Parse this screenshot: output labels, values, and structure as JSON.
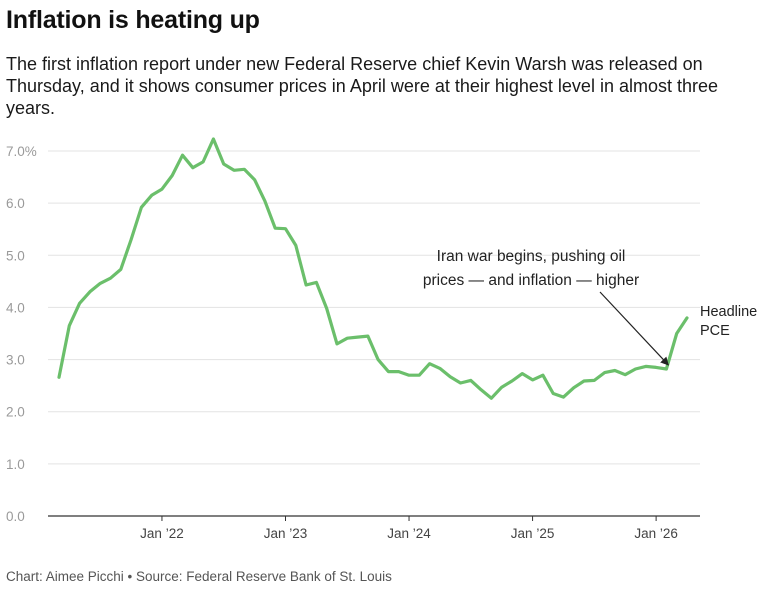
{
  "header": {
    "title": "Inflation is heating up",
    "subtitle": "The first inflation report under new Federal Reserve chief Kevin Warsh was released on Thursday, and it shows consumer prices in April were at their highest level in almost three years."
  },
  "footer": {
    "source": "Chart: Aimee Picchi • Source: Federal Reserve Bank of St. Louis"
  },
  "chart_data": {
    "type": "line",
    "title": "Inflation is heating up",
    "xlabel": "",
    "ylabel": "",
    "ylim": [
      0,
      7.0
    ],
    "yticks": [
      0,
      1,
      2,
      3,
      4,
      5,
      6,
      7
    ],
    "ytick_labels": [
      "0.0",
      "1.0",
      "2.0",
      "3.0",
      "4.0",
      "5.0",
      "6.0",
      "7.0%"
    ],
    "xticks": [
      "2022-01",
      "2023-01",
      "2024-01",
      "2025-01",
      "2026-01"
    ],
    "xtick_labels": [
      "Jan ’22",
      "Jan ’23",
      "Jan ’24",
      "Jan ’25",
      "Jan ’26"
    ],
    "grid": true,
    "line_color": "#6bbf6b",
    "series": [
      {
        "name": "Headline PCE",
        "points": [
          [
            "2021-03",
            2.66
          ],
          [
            "2021-04",
            3.65
          ],
          [
            "2021-05",
            4.08
          ],
          [
            "2021-06",
            4.3
          ],
          [
            "2021-07",
            4.46
          ],
          [
            "2021-08",
            4.56
          ],
          [
            "2021-09",
            4.73
          ],
          [
            "2021-10",
            5.3
          ],
          [
            "2021-11",
            5.92
          ],
          [
            "2021-12",
            6.15
          ],
          [
            "2022-01",
            6.27
          ],
          [
            "2022-02",
            6.53
          ],
          [
            "2022-03",
            6.92
          ],
          [
            "2022-04",
            6.68
          ],
          [
            "2022-05",
            6.79
          ],
          [
            "2022-06",
            7.23
          ],
          [
            "2022-07",
            6.75
          ],
          [
            "2022-08",
            6.63
          ],
          [
            "2022-09",
            6.65
          ],
          [
            "2022-10",
            6.45
          ],
          [
            "2022-11",
            6.04
          ],
          [
            "2022-12",
            5.52
          ],
          [
            "2023-01",
            5.51
          ],
          [
            "2023-02",
            5.19
          ],
          [
            "2023-03",
            4.43
          ],
          [
            "2023-04",
            4.48
          ],
          [
            "2023-05",
            3.98
          ],
          [
            "2023-06",
            3.3
          ],
          [
            "2023-07",
            3.41
          ],
          [
            "2023-08",
            3.43
          ],
          [
            "2023-09",
            3.45
          ],
          [
            "2023-10",
            3.0
          ],
          [
            "2023-11",
            2.77
          ],
          [
            "2023-12",
            2.77
          ],
          [
            "2024-01",
            2.7
          ],
          [
            "2024-02",
            2.7
          ],
          [
            "2024-03",
            2.92
          ],
          [
            "2024-04",
            2.83
          ],
          [
            "2024-05",
            2.67
          ],
          [
            "2024-06",
            2.55
          ],
          [
            "2024-07",
            2.6
          ],
          [
            "2024-08",
            2.42
          ],
          [
            "2024-09",
            2.26
          ],
          [
            "2024-10",
            2.47
          ],
          [
            "2024-11",
            2.59
          ],
          [
            "2024-12",
            2.73
          ],
          [
            "2025-01",
            2.61
          ],
          [
            "2025-02",
            2.7
          ],
          [
            "2025-03",
            2.35
          ],
          [
            "2025-04",
            2.28
          ],
          [
            "2025-05",
            2.46
          ],
          [
            "2025-06",
            2.59
          ],
          [
            "2025-07",
            2.6
          ],
          [
            "2025-08",
            2.75
          ],
          [
            "2025-09",
            2.79
          ],
          [
            "2025-10",
            2.71
          ],
          [
            "2025-11",
            2.82
          ],
          [
            "2025-12",
            2.87
          ],
          [
            "2026-01",
            2.85
          ],
          [
            "2026-02",
            2.82
          ],
          [
            "2026-03",
            3.5
          ],
          [
            "2026-04",
            3.8
          ]
        ]
      }
    ],
    "series_label": [
      "Headline",
      "PCE"
    ],
    "annotations": [
      {
        "lines": [
          "Iran war begins, pushing oil",
          "prices — and inflation — higher"
        ],
        "x": "2026-02",
        "y": 2.82
      }
    ]
  }
}
